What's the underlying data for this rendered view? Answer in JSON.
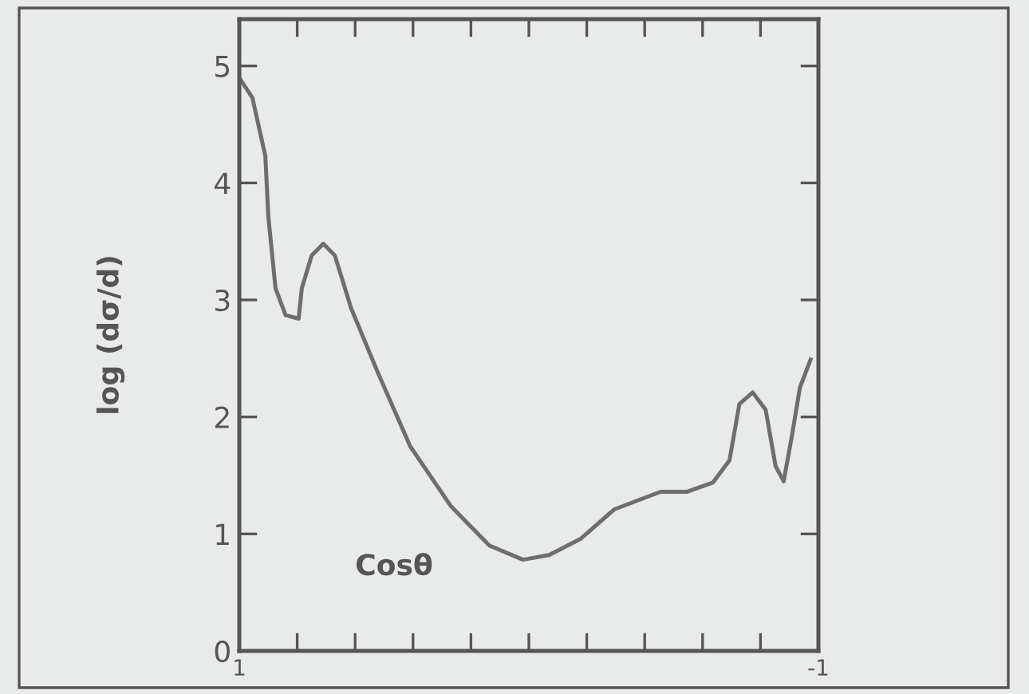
{
  "chart_data": {
    "type": "line",
    "xlabel": "Cosθ",
    "ylabel": "log (dσ/d)",
    "xlim": [
      1,
      -1
    ],
    "ylim": [
      0,
      5.4
    ],
    "xticks": [
      {
        "value": 1,
        "label": "1"
      },
      {
        "value": 0.8,
        "label": null
      },
      {
        "value": 0.6,
        "label": null
      },
      {
        "value": 0.4,
        "label": null
      },
      {
        "value": 0.2,
        "label": null
      },
      {
        "value": 0,
        "label": null
      },
      {
        "value": -0.2,
        "label": null
      },
      {
        "value": -0.4,
        "label": null
      },
      {
        "value": -0.6,
        "label": null
      },
      {
        "value": -0.8,
        "label": null
      },
      {
        "value": -1,
        "label": "-1"
      }
    ],
    "yticks": [
      0,
      1,
      2,
      3,
      4,
      5
    ],
    "series": [
      {
        "color": "#6e6e6e",
        "x": [
          0.995,
          0.955,
          0.91,
          0.9,
          0.875,
          0.84,
          0.795,
          0.784,
          0.75,
          0.71,
          0.67,
          0.614,
          0.52,
          0.41,
          0.27,
          0.136,
          0.02,
          -0.07,
          -0.18,
          -0.295,
          -0.455,
          -0.545,
          -0.636,
          -0.693,
          -0.727,
          -0.773,
          -0.818,
          -0.852,
          -0.88,
          -0.91,
          -0.936,
          -0.973
        ],
        "values": [
          4.88,
          4.73,
          4.23,
          3.72,
          3.1,
          2.87,
          2.84,
          3.1,
          3.38,
          3.48,
          3.38,
          2.93,
          2.37,
          1.75,
          1.24,
          0.9,
          0.78,
          0.82,
          0.96,
          1.21,
          1.36,
          1.36,
          1.44,
          1.63,
          2.11,
          2.21,
          2.06,
          1.58,
          1.45,
          1.86,
          2.25,
          2.49
        ]
      }
    ],
    "grid": false,
    "legend": false,
    "marker": "none",
    "line_style": "solid"
  }
}
